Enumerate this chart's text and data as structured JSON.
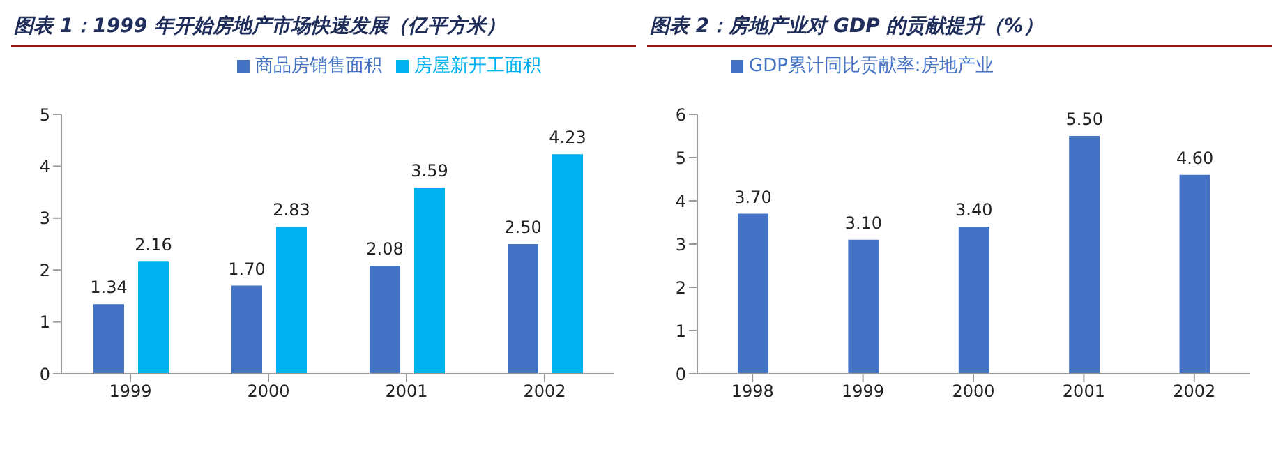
{
  "chart_data": [
    {
      "type": "bar",
      "title": "图表 1：1999 年开始房地产市场快速发展（亿平方米）",
      "categories": [
        "1999",
        "2000",
        "2001",
        "2002"
      ],
      "series": [
        {
          "name": "商品房销售面积",
          "color": "#4472c4",
          "values": [
            1.34,
            1.7,
            2.08,
            2.5
          ],
          "value_labels": [
            "1.34",
            "1.70",
            "2.08",
            "2.50"
          ]
        },
        {
          "name": "房屋新开工面积",
          "color": "#00b0f0",
          "values": [
            2.16,
            2.83,
            3.59,
            4.23
          ],
          "value_labels": [
            "2.16",
            "2.83",
            "3.59",
            "4.23"
          ]
        }
      ],
      "ylim": [
        0,
        5
      ],
      "yticks": [
        0,
        1,
        2,
        3,
        4,
        5
      ],
      "grid": false,
      "legend": "top"
    },
    {
      "type": "bar",
      "title": "图表 2：房地产业对 GDP 的贡献提升（%）",
      "categories": [
        "1998",
        "1999",
        "2000",
        "2001",
        "2002"
      ],
      "series": [
        {
          "name": "GDP累计同比贡献率:房地产业",
          "color": "#4472c4",
          "values": [
            3.7,
            3.1,
            3.4,
            5.5,
            4.6
          ],
          "value_labels": [
            "3.70",
            "3.10",
            "3.40",
            "5.50",
            "4.60"
          ]
        }
      ],
      "ylim": [
        0,
        6
      ],
      "yticks": [
        0,
        1,
        2,
        3,
        4,
        5,
        6
      ],
      "grid": false,
      "legend": "top left"
    }
  ]
}
